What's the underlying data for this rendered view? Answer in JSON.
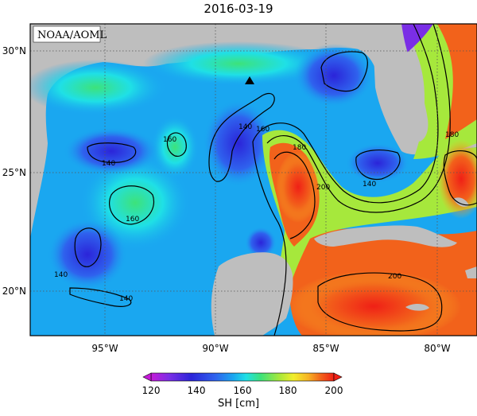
{
  "title": "2016-03-19",
  "credit": "NOAA/AOML",
  "colorbar": {
    "label": "SH [cm]",
    "ticks": [
      "120",
      "140",
      "160",
      "180",
      "200"
    ],
    "colors": [
      "#c51bd8",
      "#7a2ee6",
      "#2b24d9",
      "#2f62ee",
      "#1aa7f0",
      "#1fe0e6",
      "#3de27a",
      "#a6e83c",
      "#f2ee2b",
      "#f7b324",
      "#f2621b",
      "#f02016"
    ]
  },
  "axes": {
    "lat_labels": [
      "30°N",
      "25°N",
      "20°N"
    ],
    "lon_labels": [
      "95°W",
      "90°W",
      "85°W",
      "80°W"
    ]
  },
  "contours": {
    "labels": [
      "140",
      "140",
      "140",
      "140",
      "140",
      "160",
      "160",
      "160",
      "180",
      "180",
      "200",
      "200"
    ]
  },
  "marker": {
    "label": "",
    "shape": "triangle"
  },
  "colors": {
    "land": "#bebebe",
    "frame": "#000000",
    "grid": "#555555"
  }
}
